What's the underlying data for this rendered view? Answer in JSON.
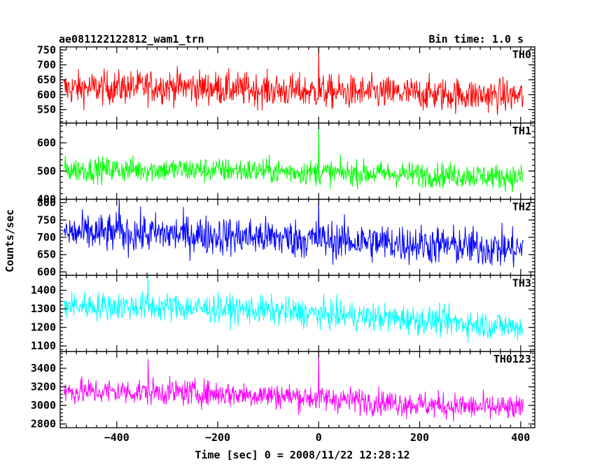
{
  "header": {
    "title": "ae081122122812_wam1_trn",
    "bin_time": "Bin time: 1.0 s"
  },
  "chart_data": {
    "type": "line",
    "title": "ae081122122812_wam1_trn",
    "xlabel": "Time [sec] 0 = 2008/11/22 12:28:12",
    "ylabel": "Counts/sec",
    "xlim": [
      -512,
      428
    ],
    "x_ticks": [
      -400,
      -200,
      0,
      200,
      400
    ],
    "x_tick_labels": [
      "−400",
      "−200",
      "0",
      "200",
      "400"
    ],
    "x_range": [
      -505,
      405
    ],
    "grid": false,
    "panels": [
      {
        "name": "TH0",
        "color": "#ff0000",
        "ylim": [
          505,
          760
        ],
        "y_ticks": [
          550,
          600,
          650,
          700,
          750
        ],
        "y_tick_labels": [
          "550",
          "600",
          "650",
          "700",
          "750"
        ],
        "trend": [
          [
            -505,
            620
          ],
          [
            -300,
            628
          ],
          [
            -100,
            615
          ],
          [
            0,
            610
          ],
          [
            200,
            603
          ],
          [
            405,
            595
          ]
        ],
        "noise_sd": 28,
        "spikes": [
          [
            0,
            760
          ]
        ]
      },
      {
        "name": "TH1",
        "color": "#00ff00",
        "ylim": [
          400,
          670
        ],
        "y_ticks": [
          400,
          500,
          600
        ],
        "y_tick_labels": [
          "400",
          "500",
          "600"
        ],
        "trend": [
          [
            -505,
            505
          ],
          [
            -300,
            505
          ],
          [
            -100,
            500
          ],
          [
            0,
            495
          ],
          [
            200,
            488
          ],
          [
            405,
            478
          ]
        ],
        "noise_sd": 22,
        "spikes": [
          [
            0,
            670
          ]
        ]
      },
      {
        "name": "TH2",
        "color": "#0000ff",
        "ylim": [
          590,
          810
        ],
        "y_ticks": [
          600,
          650,
          700,
          750,
          800
        ],
        "y_tick_labels": [
          "600",
          "650",
          "700",
          "750",
          "800"
        ],
        "trend": [
          [
            -505,
            712
          ],
          [
            -300,
            710
          ],
          [
            -100,
            700
          ],
          [
            0,
            693
          ],
          [
            200,
            680
          ],
          [
            405,
            665
          ]
        ],
        "noise_sd": 28,
        "spikes": [
          [
            0,
            810
          ],
          [
            -395,
            810
          ]
        ]
      },
      {
        "name": "TH3",
        "color": "#00ffff",
        "ylim": [
          1070,
          1480
        ],
        "y_ticks": [
          1100,
          1200,
          1300,
          1400
        ],
        "y_tick_labels": [
          "1100",
          "1200",
          "1300",
          "1400"
        ],
        "trend": [
          [
            -505,
            1318
          ],
          [
            -300,
            1310
          ],
          [
            -100,
            1290
          ],
          [
            0,
            1272
          ],
          [
            200,
            1240
          ],
          [
            405,
            1200
          ]
        ],
        "noise_sd": 38,
        "spikes": [
          [
            -338,
            1475
          ]
        ]
      },
      {
        "name": "TH0123",
        "color": "#ff00ff",
        "ylim": [
          2760,
          3580
        ],
        "y_ticks": [
          2800,
          3000,
          3200,
          3400
        ],
        "y_tick_labels": [
          "2800",
          "3000",
          "3200",
          "3400"
        ],
        "trend": [
          [
            -505,
            3150
          ],
          [
            -300,
            3145
          ],
          [
            -100,
            3110
          ],
          [
            0,
            3080
          ],
          [
            200,
            3010
          ],
          [
            405,
            2960
          ]
        ],
        "noise_sd": 70,
        "spikes": [
          [
            0,
            3580
          ],
          [
            -338,
            3500
          ]
        ]
      }
    ]
  }
}
